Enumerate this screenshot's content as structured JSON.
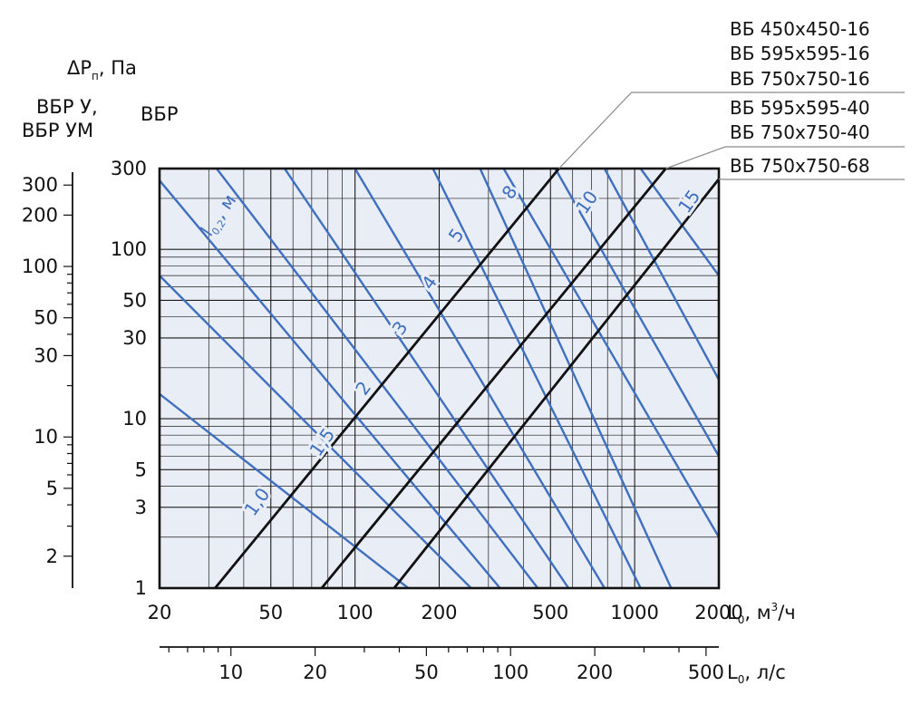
{
  "chart_data": {
    "type": "line",
    "scale": {
      "x": "log",
      "y": "log"
    },
    "grid": true,
    "x_axis": {
      "label_main": "L",
      "label_sub": "0",
      "label_unit_pre": ", м",
      "label_unit_sup": "3",
      "label_unit_post": "/ч",
      "range": [
        20,
        2000
      ],
      "ticks": [
        20,
        50,
        100,
        200,
        500,
        1000,
        2000
      ],
      "tick_labels": [
        "20",
        "50",
        "100",
        "200",
        "500",
        "1000",
        "2000"
      ]
    },
    "x2_axis": {
      "label_main": "L",
      "label_sub": "0",
      "label_unit": ", л/с",
      "range": [
        5.556,
        555.6
      ],
      "ticks": [
        10,
        20,
        50,
        100,
        200,
        500
      ],
      "tick_labels": [
        "10",
        "20",
        "50",
        "100",
        "200",
        "500"
      ]
    },
    "y_axis": {
      "label_main": "ΔP",
      "label_sub": "п",
      "label_unit": ", Па",
      "title_right": "ВБР",
      "range": [
        1,
        300
      ],
      "ticks": [
        1,
        3,
        5,
        10,
        30,
        50,
        100,
        300
      ],
      "tick_labels": [
        "1",
        "3",
        "5",
        "10",
        "30",
        "50",
        "100",
        "300"
      ]
    },
    "y2_axis": {
      "title_line1": "ВБР У,",
      "title_line2": "ВБР УМ",
      "range": [
        1.3,
        375
      ],
      "ticks": [
        2,
        5,
        10,
        30,
        50,
        100,
        200,
        300
      ],
      "tick_labels": [
        "2",
        "5",
        "10",
        "30",
        "50",
        "100",
        "200",
        "300"
      ]
    },
    "series": [
      {
        "x": [
          31.6,
          536
        ],
        "y": [
          1,
          300
        ]
      },
      {
        "x": [
          76,
          1292
        ],
        "y": [
          1,
          300
        ]
      },
      {
        "x": [
          138,
          2000
        ],
        "y": [
          1,
          260
        ]
      }
    ],
    "series_labels": [
      "ВБ 450х450-16",
      "ВБ 595х595-16",
      "ВБ 750х750-16",
      "ВБ 595х595-40",
      "ВБ 750х750-40",
      "ВБ 750х750-68"
    ],
    "isolines": {
      "label_main": "l",
      "label_sub": "0,2",
      "label_unit": ", м",
      "lines": [
        {
          "x": [
            20,
            155
          ],
          "y": [
            14,
            1
          ]
        },
        {
          "x": [
            20,
            260
          ],
          "y": [
            70,
            1
          ]
        },
        {
          "x": [
            20,
            330
          ],
          "y": [
            255,
            1
          ]
        },
        {
          "x": [
            32,
            450
          ],
          "y": [
            300,
            1
          ]
        },
        {
          "x": [
            56,
            580
          ],
          "y": [
            300,
            1
          ]
        },
        {
          "x": [
            100,
            780
          ],
          "y": [
            300,
            1
          ]
        },
        {
          "x": [
            190,
            1050
          ],
          "y": [
            300,
            1
          ]
        },
        {
          "x": [
            280,
            1350
          ],
          "y": [
            300,
            1
          ]
        },
        {
          "x": [
            340,
            2000
          ],
          "y": [
            300,
            2
          ]
        },
        {
          "x": [
            520,
            2000
          ],
          "y": [
            300,
            6
          ]
        },
        {
          "x": [
            780,
            2000
          ],
          "y": [
            300,
            17
          ]
        },
        {
          "x": [
            1050,
            2000
          ],
          "y": [
            300,
            70
          ]
        }
      ],
      "value_labels": [
        {
          "text": "1,0",
          "x": 45,
          "y": 3.2
        },
        {
          "text": "1,5",
          "x": 77,
          "y": 7.2
        },
        {
          "text": "2",
          "x": 108,
          "y": 15
        },
        {
          "text": "3",
          "x": 146,
          "y": 34
        },
        {
          "text": "4",
          "x": 186,
          "y": 63
        },
        {
          "text": "5",
          "x": 232,
          "y": 120
        },
        {
          "text": "8",
          "x": 360,
          "y": 215
        },
        {
          "text": "10",
          "x": 680,
          "y": 188
        },
        {
          "text": "15",
          "x": 1580,
          "y": 190
        }
      ]
    },
    "colors": {
      "isoline": "#3f6fc0",
      "series": "#111111",
      "plot_background": "#e9edf5",
      "grid": "#1c1c1c",
      "leader": "#8a8a8a"
    }
  }
}
